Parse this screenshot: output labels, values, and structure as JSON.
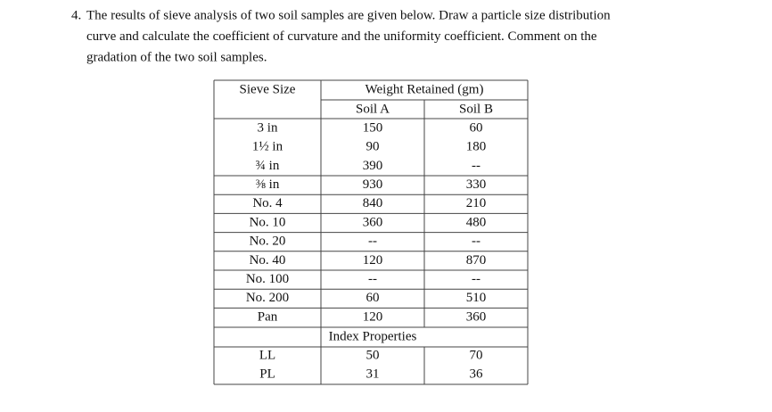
{
  "question": {
    "number": "4.",
    "lines": [
      "The results of sieve analysis of two soil samples are given below. Draw a particle size distribution",
      "curve and calculate the coefficient of curvature and the uniformity coefficient. Comment on the",
      "gradation of the two soil samples."
    ]
  },
  "table": {
    "header": {
      "first": "Sieve Size",
      "group": "Weight Retained (gm)",
      "columns": [
        "Soil A",
        "Soil B"
      ]
    },
    "rows": [
      [
        "3 in",
        "150",
        "60"
      ],
      [
        "1½ in",
        "90",
        "180"
      ],
      [
        "¾ in",
        "390",
        "--"
      ],
      [
        "⅜ in",
        "930",
        "330"
      ],
      [
        "No. 4",
        "840",
        "210"
      ],
      [
        "No. 10",
        "360",
        "480"
      ],
      [
        "No. 20",
        "--",
        "--"
      ],
      [
        "No. 40",
        "120",
        "870"
      ],
      [
        "No. 100",
        "--",
        "--"
      ],
      [
        "No. 200",
        "60",
        "510"
      ],
      [
        "Pan",
        "120",
        "360"
      ]
    ],
    "section": "Index Properties",
    "index_rows": [
      [
        "LL",
        "50",
        "70"
      ],
      [
        "PL",
        "31",
        "36"
      ]
    ]
  }
}
